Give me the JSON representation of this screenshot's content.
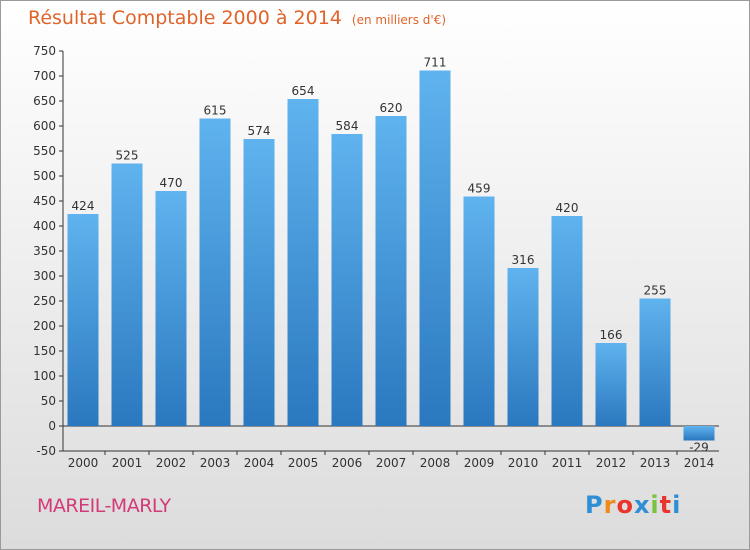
{
  "title": "Résultat Comptable 2000 à 2014",
  "subtitle": "(en milliers d'€)",
  "town": "MAREIL-MARLY",
  "logo": {
    "letters": [
      "P",
      "r",
      "o",
      "x",
      "i",
      "t",
      "i"
    ],
    "colors": [
      "#2e8fd6",
      "#f08a1c",
      "#e8362e",
      "#2e8fd6",
      "#7cc242",
      "#e8362e",
      "#2e8fd6"
    ]
  },
  "colors": {
    "bar_top": "#5fb3ee",
    "bar_bottom": "#2a78bf",
    "axis": "#333333",
    "title": "#e0632a",
    "town": "#d43a78"
  },
  "chart_data": {
    "type": "bar",
    "title": "Résultat Comptable 2000 à 2014",
    "subtitle": "(en milliers d'€)",
    "xlabel": "",
    "ylabel": "",
    "categories": [
      "2000",
      "2001",
      "2002",
      "2003",
      "2004",
      "2005",
      "2006",
      "2007",
      "2008",
      "2009",
      "2010",
      "2011",
      "2012",
      "2013",
      "2014"
    ],
    "values": [
      424,
      525,
      470,
      615,
      574,
      654,
      584,
      620,
      711,
      459,
      316,
      420,
      166,
      255,
      -29
    ],
    "value_labels": [
      "424",
      "525",
      "470",
      "615",
      "574",
      "654",
      "584",
      "620",
      "711",
      "459",
      "316",
      "420",
      "166",
      "255",
      "-29"
    ],
    "ylim": [
      -50,
      750
    ],
    "yticks": [
      -50,
      0,
      50,
      100,
      150,
      200,
      250,
      300,
      350,
      400,
      450,
      500,
      550,
      600,
      650,
      700,
      750
    ],
    "ytick_labels": [
      "-50",
      "0",
      "50",
      "100",
      "150",
      "200",
      "250",
      "300",
      "350",
      "400",
      "450",
      "500",
      "550",
      "600",
      "650",
      "700",
      "750"
    ],
    "grid": false,
    "legend": "none"
  }
}
